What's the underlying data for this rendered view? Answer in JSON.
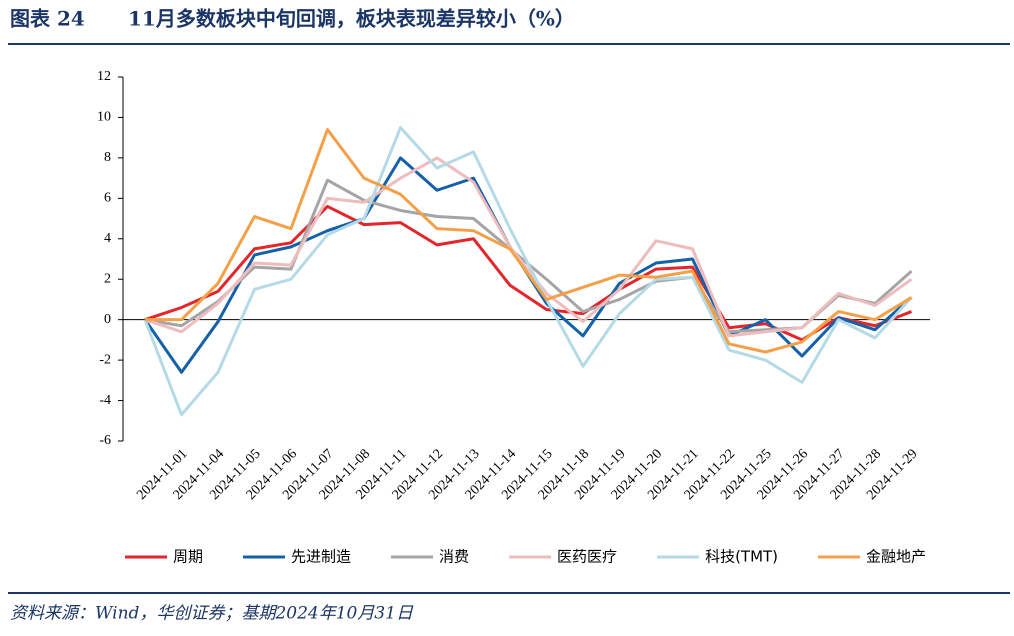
{
  "header": {
    "figure_label": "图表 24",
    "title": "11月多数板块中旬回调，板块表现差异较小（%）"
  },
  "chart_data": {
    "type": "line",
    "categories": [
      null,
      "2024-11-01",
      "2024-11-04",
      "2024-11-05",
      "2024-11-06",
      "2024-11-07",
      "2024-11-08",
      "2024-11-11",
      "2024-11-12",
      "2024-11-13",
      "2024-11-14",
      "2024-11-15",
      "2024-11-18",
      "2024-11-19",
      "2024-11-20",
      "2024-11-21",
      "2024-11-22",
      "2024-11-25",
      "2024-11-26",
      "2024-11-27",
      "2024-11-28",
      "2024-11-29"
    ],
    "series": [
      {
        "name": "周期",
        "color": "#e2262b",
        "values": [
          0,
          0.6,
          1.4,
          3.5,
          3.8,
          5.6,
          4.7,
          4.8,
          3.7,
          4.0,
          1.7,
          0.5,
          0.3,
          1.5,
          2.5,
          2.6,
          -0.4,
          -0.2,
          -1.0,
          0.1,
          -0.3,
          0.4
        ]
      },
      {
        "name": "先进制造",
        "color": "#1561a9",
        "values": [
          0,
          -2.6,
          -0.1,
          3.2,
          3.6,
          4.4,
          5.0,
          8.0,
          6.4,
          7.0,
          3.6,
          0.8,
          -0.8,
          1.8,
          2.8,
          3.0,
          -0.8,
          0,
          -1.8,
          0.1,
          -0.5,
          1.1
        ]
      },
      {
        "name": "消费",
        "color": "#a5a5a5",
        "values": [
          0,
          -0.3,
          0.9,
          2.6,
          2.5,
          6.9,
          5.9,
          5.4,
          5.1,
          5.0,
          3.5,
          2.0,
          0.4,
          1.0,
          1.9,
          2.1,
          -0.6,
          -0.5,
          -0.4,
          1.2,
          0.8,
          2.4
        ]
      },
      {
        "name": "医药医疗",
        "color": "#efbcbd",
        "values": [
          0,
          -0.6,
          0.8,
          2.8,
          2.7,
          6.0,
          5.8,
          7.0,
          8.0,
          6.8,
          3.6,
          1.3,
          -0.1,
          1.5,
          3.9,
          3.5,
          -0.8,
          -0.6,
          -0.4,
          1.3,
          0.7,
          2.0
        ]
      },
      {
        "name": "科技(TMT)",
        "color": "#b5dae7",
        "values": [
          0,
          -4.7,
          -2.6,
          1.5,
          2.0,
          4.2,
          5.0,
          9.5,
          7.5,
          8.3,
          4.5,
          1.0,
          -2.3,
          0.3,
          2.0,
          2.1,
          -1.5,
          -2.0,
          -3.1,
          0,
          -0.9,
          1.1
        ]
      },
      {
        "name": "金融地产",
        "color": "#f4a048",
        "values": [
          0,
          0,
          1.8,
          5.1,
          4.5,
          9.4,
          7.0,
          6.2,
          4.5,
          4.4,
          3.5,
          1.0,
          1.6,
          2.2,
          2.1,
          2.4,
          -1.2,
          -1.6,
          -1.1,
          0.4,
          0,
          1.1
        ]
      }
    ],
    "ylim": [
      -6,
      12
    ],
    "yticks": [
      -6,
      -4,
      -2,
      0,
      2,
      4,
      6,
      8,
      10,
      12
    ],
    "legend": "bottom",
    "grid": false
  },
  "footer": {
    "source": "资料来源：Wind，华创证券；基期2024年10月31日"
  }
}
